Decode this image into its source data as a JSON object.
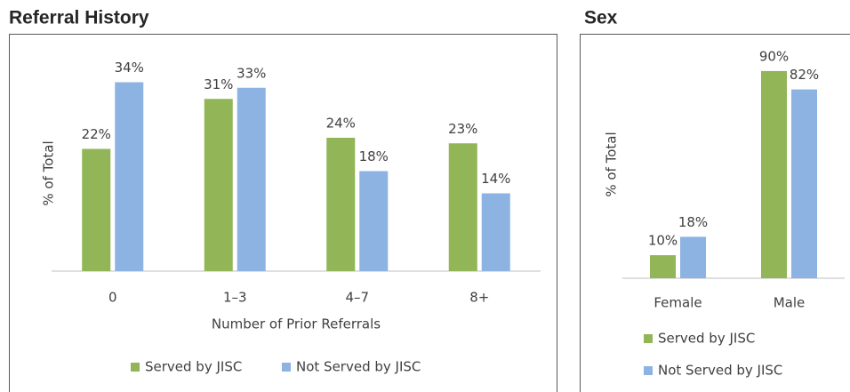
{
  "chart_data": [
    {
      "type": "bar",
      "title": "Referral History",
      "x_label": "Number of Prior Referrals",
      "y_label": "% of Total",
      "categories": [
        "0",
        "1–3",
        "4–7",
        "8+"
      ],
      "series": [
        {
          "name": "Served by JISC",
          "color": "#91b557",
          "values": [
            22,
            31,
            24,
            23
          ],
          "value_labels": [
            "22%",
            "31%",
            "24%",
            "23%"
          ]
        },
        {
          "name": "Not Served by JISC",
          "color": "#8db3e2",
          "values": [
            34,
            33,
            18,
            14
          ],
          "value_labels": [
            "34%",
            "33%",
            "18%",
            "14%"
          ]
        }
      ],
      "ylim": [
        0,
        40
      ]
    },
    {
      "type": "bar",
      "title": "Sex",
      "y_label": "% of Total",
      "categories": [
        "Female",
        "Male"
      ],
      "series": [
        {
          "name": "Served by JISC",
          "color": "#91b557",
          "values": [
            10,
            90
          ],
          "value_labels": [
            "10%",
            "90%"
          ]
        },
        {
          "name": "Not Served by JISC",
          "color": "#8db3e2",
          "values": [
            18,
            82
          ],
          "value_labels": [
            "18%",
            "82%"
          ]
        }
      ],
      "ylim": [
        0,
        100
      ]
    }
  ]
}
